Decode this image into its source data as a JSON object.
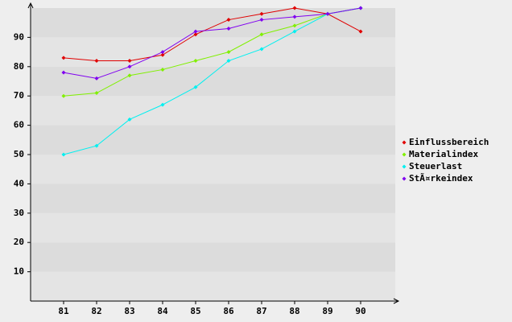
{
  "chart_data": {
    "type": "line",
    "x": [
      81,
      82,
      83,
      84,
      85,
      86,
      87,
      88,
      89,
      90
    ],
    "xlim": [
      80,
      91
    ],
    "xticks": [
      81,
      82,
      83,
      84,
      85,
      86,
      87,
      88,
      89,
      90
    ],
    "ylim": [
      0,
      100
    ],
    "yticks": [
      10,
      20,
      30,
      40,
      50,
      60,
      70,
      80,
      90
    ],
    "grid": true,
    "legend": "right",
    "series": [
      {
        "name": "Einflussbereich",
        "color": "#e00000",
        "values": [
          83,
          82,
          82,
          84,
          91,
          96,
          98,
          100,
          98,
          92
        ]
      },
      {
        "name": "Materialindex",
        "color": "#80f000",
        "values": [
          70,
          71,
          77,
          79,
          82,
          85,
          91,
          94,
          98,
          100
        ]
      },
      {
        "name": "Steuerlast",
        "color": "#00f0f0",
        "values": [
          50,
          53,
          62,
          67,
          73,
          82,
          86,
          92,
          98,
          100
        ]
      },
      {
        "name": "StÃ¤rkeindex",
        "color": "#8000f0",
        "values": [
          78,
          76,
          80,
          85,
          92,
          93,
          96,
          97,
          98,
          100
        ]
      }
    ]
  }
}
